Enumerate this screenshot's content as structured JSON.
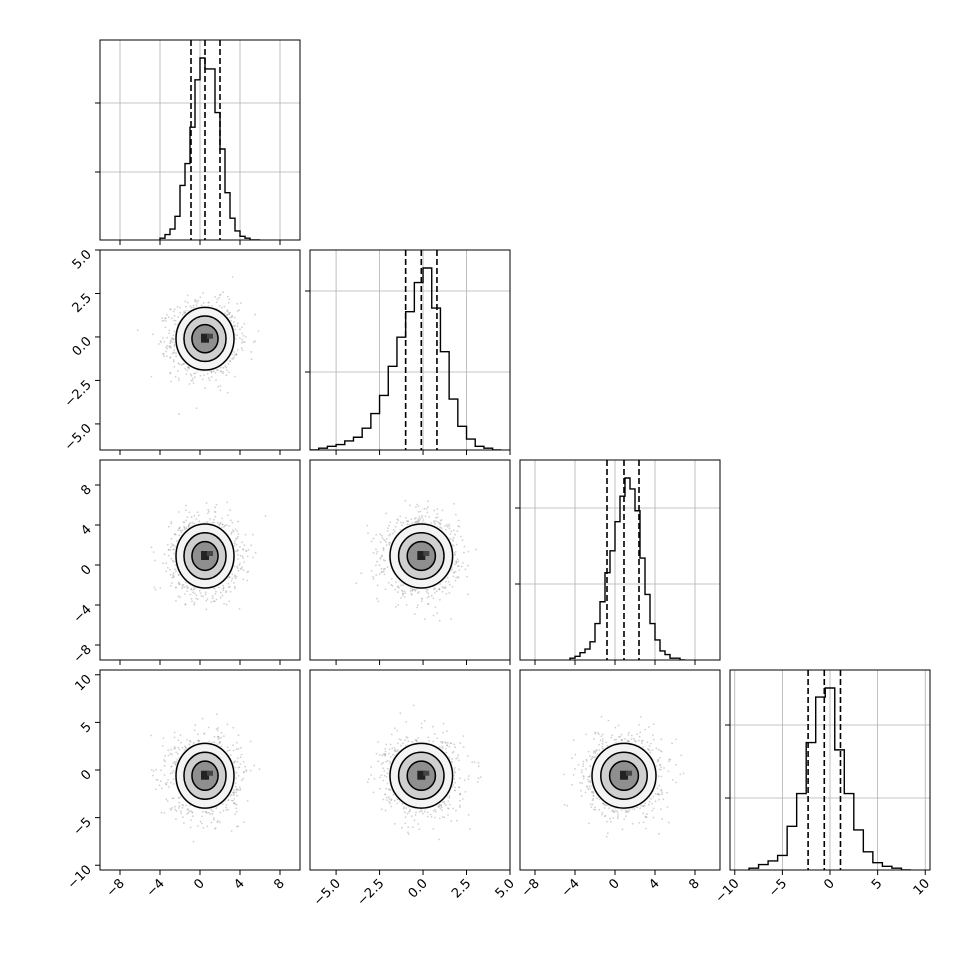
{
  "chart_data": {
    "type": "corner",
    "grid": true,
    "title": "",
    "parameters": [
      {
        "range": [
          -10,
          10
        ],
        "ticks": [
          -8,
          -4,
          0,
          4,
          8
        ],
        "tick_labels": [
          "−8",
          "−4",
          "0",
          "4",
          "8"
        ],
        "quantiles": [
          -0.9,
          0.5,
          2.0
        ],
        "hist": {
          "edges": [
            -4,
            -3.5,
            -3,
            -2.5,
            -2,
            -1.5,
            -1,
            -0.5,
            0,
            0.5,
            1,
            1.5,
            2,
            2.5,
            3,
            3.5,
            4,
            4.5,
            5,
            5.5,
            6
          ],
          "counts": [
            0.01,
            0.03,
            0.06,
            0.13,
            0.3,
            0.42,
            0.62,
            0.88,
            1.0,
            0.94,
            0.94,
            0.7,
            0.5,
            0.26,
            0.12,
            0.05,
            0.02,
            0.01,
            0.0,
            0.0
          ]
        }
      },
      {
        "range": [
          -6.5,
          5
        ],
        "ticks": [
          -5,
          -2.5,
          0,
          2.5,
          5
        ],
        "tick_labels": [
          "−5.0",
          "−2.5",
          "0.0",
          "2.5",
          "5.0"
        ],
        "quantiles": [
          -1.0,
          -0.1,
          0.8
        ],
        "hist": {
          "edges": [
            -6.5,
            -6,
            -5.5,
            -5,
            -4.5,
            -4,
            -3.5,
            -3,
            -2.5,
            -2,
            -1.5,
            -1,
            -0.5,
            0,
            0.5,
            1,
            1.5,
            2,
            2.5,
            3,
            3.5,
            4,
            4.5
          ],
          "counts": [
            0.0,
            0.01,
            0.02,
            0.03,
            0.05,
            0.07,
            0.12,
            0.2,
            0.3,
            0.46,
            0.62,
            0.76,
            0.92,
            1.0,
            0.78,
            0.54,
            0.28,
            0.13,
            0.06,
            0.02,
            0.01,
            0.0
          ]
        }
      },
      {
        "range": [
          -9.5,
          10.5
        ],
        "ticks": [
          -8,
          -4,
          0,
          4,
          8
        ],
        "tick_labels": [
          "−8",
          "−4",
          "0",
          "4",
          "8"
        ],
        "quantiles": [
          -0.8,
          0.9,
          2.4
        ],
        "hist": {
          "edges": [
            -4.5,
            -4,
            -3.5,
            -3,
            -2.5,
            -2,
            -1.5,
            -1,
            -0.5,
            0,
            0.5,
            1,
            1.5,
            2,
            2.5,
            3,
            3.5,
            4,
            4.5,
            5,
            5.5,
            6,
            6.5,
            7
          ],
          "counts": [
            0.01,
            0.02,
            0.04,
            0.06,
            0.1,
            0.2,
            0.32,
            0.48,
            0.6,
            0.76,
            0.9,
            1.0,
            0.94,
            0.82,
            0.56,
            0.36,
            0.2,
            0.11,
            0.05,
            0.03,
            0.01,
            0.01,
            0.0
          ]
        }
      },
      {
        "range": [
          -10.5,
          10.5
        ],
        "ticks": [
          -10,
          -5,
          0,
          5,
          10
        ],
        "tick_labels": [
          "−10",
          "−5",
          "0",
          "5",
          "10"
        ],
        "quantiles": [
          -2.3,
          -0.6,
          1.1
        ],
        "hist": {
          "edges": [
            -8.5,
            -7.5,
            -6.5,
            -5.5,
            -4.5,
            -3.5,
            -2.5,
            -1.5,
            -0.5,
            0.5,
            1.5,
            2.5,
            3.5,
            4.5,
            5.5,
            6.5,
            7.5,
            8.5
          ],
          "counts": [
            0.01,
            0.03,
            0.05,
            0.08,
            0.24,
            0.42,
            0.7,
            0.95,
            1.0,
            0.66,
            0.42,
            0.22,
            0.1,
            0.04,
            0.02,
            0.01,
            0.0
          ]
        }
      }
    ]
  }
}
